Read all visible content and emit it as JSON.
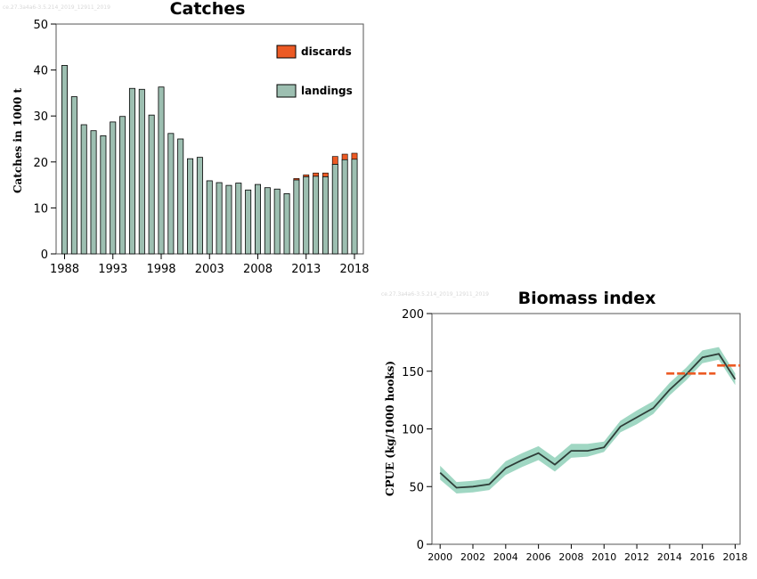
{
  "colors": {
    "landings": "#9dbfb1",
    "discards": "#ec5a24",
    "index_line": "#2e3d38",
    "index_band": "#8fd0b8",
    "advice": "#ec5a24"
  },
  "chart_data": [
    {
      "type": "bar",
      "stacked": true,
      "watermark": "ce.27.3a4a6-3.5.214_2019_12911_2019",
      "title": "Catches",
      "xlabel": "",
      "ylabel": "Catches in 1000 t",
      "ylim": [
        0,
        50
      ],
      "yticks": [
        0,
        10,
        20,
        30,
        40,
        50
      ],
      "xtick_labels": [
        "1988",
        "1993",
        "1998",
        "2003",
        "2008",
        "2013",
        "2018"
      ],
      "grid": false,
      "legend_position": "top-right",
      "categories": [
        1988,
        1989,
        1990,
        1991,
        1992,
        1993,
        1994,
        1995,
        1996,
        1997,
        1998,
        1999,
        2000,
        2001,
        2002,
        2003,
        2004,
        2005,
        2006,
        2007,
        2008,
        2009,
        2010,
        2011,
        2012,
        2013,
        2014,
        2015,
        2016,
        2017,
        2018
      ],
      "series": [
        {
          "name": "landings",
          "values": [
            41,
            34.2,
            28.1,
            26.8,
            25.7,
            28.7,
            29.9,
            36,
            35.8,
            30.2,
            36.3,
            26.2,
            25,
            20.7,
            21,
            15.9,
            15.5,
            14.9,
            15.4,
            13.9,
            15.1,
            14.4,
            14.1,
            13.1,
            16.1,
            16.8,
            16.9,
            16.8,
            19.5,
            20.5,
            20.6
          ]
        },
        {
          "name": "discards",
          "values": [
            0,
            0,
            0,
            0,
            0,
            0,
            0,
            0,
            0,
            0,
            0,
            0,
            0,
            0,
            0,
            0,
            0,
            0,
            0,
            0,
            0,
            0,
            0,
            0,
            0.3,
            0.4,
            0.7,
            0.8,
            1.7,
            1.2,
            1.3
          ]
        }
      ]
    },
    {
      "type": "line",
      "watermark": "ce.27.3a4a6-3.5.214_2019_12911_2019",
      "title": "Biomass index",
      "xlabel": "",
      "ylabel": "CPUE (kg/1000 hooks)",
      "xlim": [
        1999.5,
        2018.3
      ],
      "ylim": [
        0,
        200
      ],
      "yticks": [
        0,
        50,
        100,
        150,
        200
      ],
      "xticks": [
        2000,
        2002,
        2004,
        2006,
        2008,
        2010,
        2012,
        2014,
        2016,
        2018
      ],
      "grid": false,
      "x": [
        2000,
        2001,
        2002,
        2003,
        2004,
        2005,
        2006,
        2007,
        2008,
        2009,
        2010,
        2011,
        2012,
        2013,
        2014,
        2015,
        2016,
        2017,
        2018
      ],
      "y": [
        62,
        49,
        50,
        52,
        66,
        73,
        79,
        69,
        81,
        81,
        84,
        102,
        110,
        118,
        134,
        147,
        162,
        165,
        143
      ],
      "band_low": [
        56,
        44,
        45,
        47,
        60,
        67,
        73,
        63,
        75,
        76,
        80,
        97,
        104,
        113,
        129,
        142,
        157,
        160,
        138
      ],
      "band_high": [
        68,
        54,
        55,
        57,
        72,
        79,
        85,
        75,
        87,
        87,
        89,
        107,
        116,
        124,
        140,
        153,
        168,
        171,
        148
      ],
      "advice_segments": [
        {
          "x": [
            2013.8,
            2016.8
          ],
          "y": 148
        },
        {
          "x": [
            2016.9,
            2018.3
          ],
          "y": 155
        }
      ]
    }
  ]
}
